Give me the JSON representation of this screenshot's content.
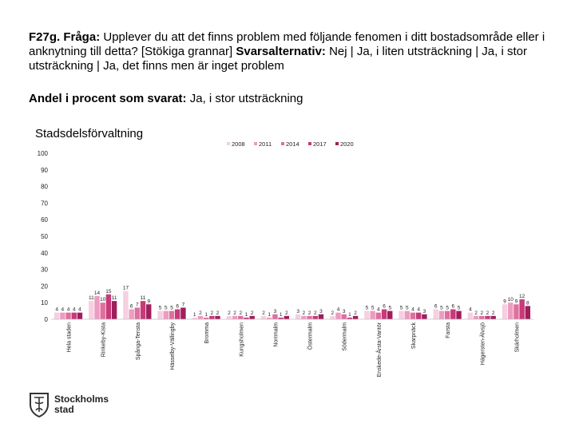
{
  "heading": {
    "label": "F27g. Fråga:",
    "question": "Upplever du att det finns problem med följande fenomen i ditt bostadsområde eller i anknytning till detta? [Stökiga grannar]",
    "alt_label": "Svarsalternativ:",
    "alternatives": "Nej | Ja, i liten utsträckning | Ja, i stor utsträckning | Ja, det finns men är inget problem"
  },
  "subheading": {
    "label": "Andel i procent som svarat:",
    "value": "Ja, i stor utsträckning"
  },
  "logo": {
    "line1": "Stockholms",
    "line2": "stad",
    "icon": "stockholm-crest-icon"
  },
  "chart_data": {
    "type": "bar",
    "title": "Stadsdelsförvaltning",
    "ylim": [
      0,
      100
    ],
    "yticks": [
      0,
      10,
      20,
      30,
      40,
      50,
      60,
      70,
      80,
      90,
      100
    ],
    "grid": false,
    "legend_position": "top",
    "categories": [
      "Hela staden",
      "Rinkeby-Kista",
      "Spånga-Tensta",
      "Hässelby-Vällingby",
      "Bromma",
      "Kungsholmen",
      "Norrmalm",
      "Östermalm",
      "Södermalm",
      "Enskede-Årsta-Vantör",
      "Skarpnäck",
      "Farsta",
      "Hägersten-Älvsjö",
      "Skärholmen"
    ],
    "series": [
      {
        "name": "2008",
        "color": "#f6cfe0",
        "values": [
          4,
          11,
          17,
          5,
          1,
          2,
          2,
          3,
          2,
          5,
          5,
          6,
          4,
          9
        ]
      },
      {
        "name": "2011",
        "color": "#ec9cc0",
        "values": [
          4,
          14,
          6,
          5,
          2,
          2,
          1,
          2,
          4,
          5,
          5,
          5,
          2,
          10
        ]
      },
      {
        "name": "2014",
        "color": "#df6f9f",
        "values": [
          4,
          10,
          7,
          5,
          1,
          2,
          3,
          2,
          3,
          4,
          4,
          5,
          2,
          9
        ]
      },
      {
        "name": "2017",
        "color": "#c8397a",
        "values": [
          4,
          15,
          11,
          6,
          2,
          1,
          1,
          2,
          1,
          6,
          4,
          6,
          2,
          12
        ]
      },
      {
        "name": "2020",
        "color": "#a11e5d",
        "values": [
          4,
          11,
          9,
          7,
          2,
          2,
          2,
          3,
          2,
          5,
          3,
          5,
          2,
          8
        ]
      }
    ]
  }
}
